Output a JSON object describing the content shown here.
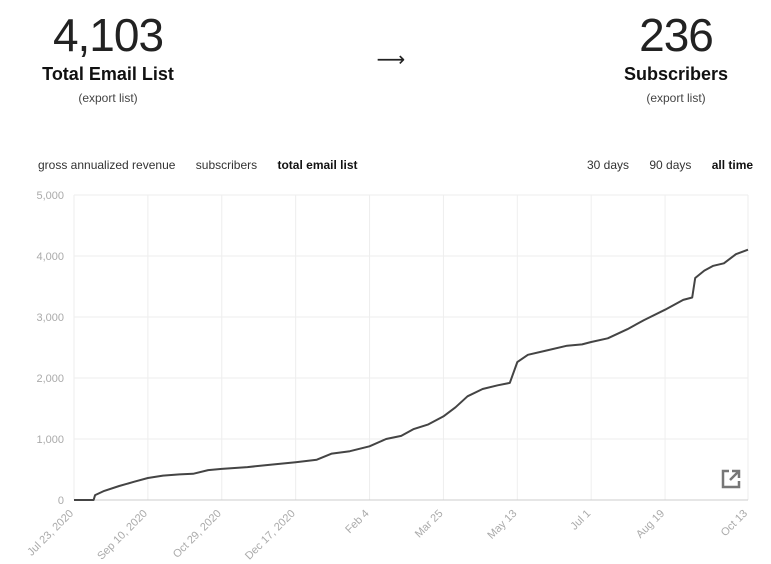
{
  "summary": {
    "left": {
      "number": "4,103",
      "label": "Total Email List",
      "link": "(export list)"
    },
    "arrow": "⟶",
    "right": {
      "number": "236",
      "label": "Subscribers",
      "link": "(export list)"
    }
  },
  "metric_tabs": [
    {
      "label": "gross annualized revenue",
      "active": false
    },
    {
      "label": "subscribers",
      "active": false
    },
    {
      "label": "total email list",
      "active": true
    }
  ],
  "range_tabs": [
    {
      "label": "30 days",
      "active": false
    },
    {
      "label": "90 days",
      "active": false
    },
    {
      "label": "all time",
      "active": true
    }
  ],
  "icons": {
    "external_link": "external-link-icon"
  },
  "colors": {
    "line": "#444444",
    "grid": "#eeeeee",
    "tick_text": "#aaaaaa"
  },
  "chart_data": {
    "type": "line",
    "title": "",
    "xlabel": "",
    "ylabel": "",
    "ylim": [
      0,
      5000
    ],
    "yticks": [
      0,
      1000,
      2000,
      3000,
      4000,
      5000
    ],
    "ytick_labels": [
      "0",
      "1,000",
      "2,000",
      "3,000",
      "4,000",
      "5,000"
    ],
    "xlim": [
      "2020-07-23",
      "2021-10-13"
    ],
    "xticks": [
      "2020-07-23",
      "2020-09-10",
      "2020-10-29",
      "2020-12-17",
      "2021-02-04",
      "2021-03-25",
      "2021-05-13",
      "2021-07-01",
      "2021-08-19",
      "2021-10-13"
    ],
    "xtick_labels": [
      "Jul 23, 2020",
      "Sep 10, 2020",
      "Oct 29, 2020",
      "Dec 17, 2020",
      "Feb 4",
      "Mar 25",
      "May 13",
      "Jul 1",
      "Aug 19",
      "Oct 13"
    ],
    "grid": true,
    "series": [
      {
        "x": [
          "2020-07-23",
          "2020-08-05",
          "2020-08-06",
          "2020-08-12",
          "2020-08-22",
          "2020-09-01",
          "2020-09-10",
          "2020-09-20",
          "2020-10-01",
          "2020-10-10",
          "2020-10-20",
          "2020-10-29",
          "2020-11-15",
          "2020-12-01",
          "2020-12-17",
          "2020-12-31",
          "2021-01-10",
          "2021-01-22",
          "2021-02-04",
          "2021-02-15",
          "2021-02-25",
          "2021-03-05",
          "2021-03-15",
          "2021-03-25",
          "2021-04-02",
          "2021-04-10",
          "2021-04-20",
          "2021-04-30",
          "2021-05-08",
          "2021-05-13",
          "2021-05-20",
          "2021-06-01",
          "2021-06-15",
          "2021-06-25",
          "2021-07-01",
          "2021-07-12",
          "2021-07-25",
          "2021-08-05",
          "2021-08-19",
          "2021-08-31",
          "2021-09-06",
          "2021-09-08",
          "2021-09-14",
          "2021-09-20",
          "2021-09-27",
          "2021-10-05",
          "2021-10-13"
        ],
        "y": [
          0,
          0,
          80,
          150,
          230,
          300,
          360,
          400,
          420,
          430,
          490,
          510,
          540,
          580,
          620,
          660,
          760,
          800,
          880,
          1000,
          1050,
          1160,
          1240,
          1370,
          1520,
          1700,
          1820,
          1880,
          1920,
          2260,
          2380,
          2450,
          2530,
          2550,
          2590,
          2650,
          2800,
          2950,
          3120,
          3280,
          3320,
          3640,
          3760,
          3840,
          3880,
          4030,
          4103
        ]
      }
    ]
  }
}
